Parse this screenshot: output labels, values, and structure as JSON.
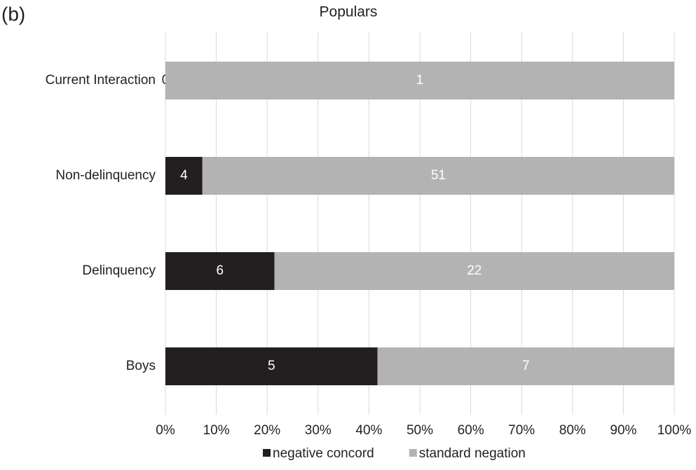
{
  "panel_label": "(b)",
  "chart_data": {
    "type": "bar",
    "orientation": "horizontal",
    "stacking": "percent",
    "title": "Populars",
    "categories": [
      "Current Interaction",
      "Non-delinquency",
      "Delinquency",
      "Boys"
    ],
    "series": [
      {
        "name": "negative concord",
        "color": "#231f20",
        "values": [
          0,
          4,
          6,
          5
        ]
      },
      {
        "name": "standard negation",
        "color": "#b3b3b3",
        "values": [
          1,
          51,
          22,
          7
        ]
      }
    ],
    "xlim": [
      0,
      100
    ],
    "xticks": [
      {
        "value": 0,
        "label": "0%"
      },
      {
        "value": 10,
        "label": "10%"
      },
      {
        "value": 20,
        "label": "20%"
      },
      {
        "value": 30,
        "label": "30%"
      },
      {
        "value": 40,
        "label": "40%"
      },
      {
        "value": 50,
        "label": "50%"
      },
      {
        "value": 60,
        "label": "60%"
      },
      {
        "value": 70,
        "label": "70%"
      },
      {
        "value": 80,
        "label": "80%"
      },
      {
        "value": 90,
        "label": "90%"
      },
      {
        "value": 100,
        "label": "100%"
      }
    ],
    "grid": true,
    "legend": "bottom"
  }
}
